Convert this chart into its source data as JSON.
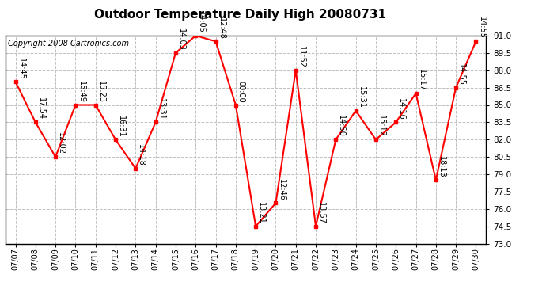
{
  "title": "Outdoor Temperature Daily High 20080731",
  "copyright": "Copyright 2008 Cartronics.com",
  "dates": [
    "07/07",
    "07/08",
    "07/09",
    "07/10",
    "07/11",
    "07/12",
    "07/13",
    "07/14",
    "07/15",
    "07/16",
    "07/17",
    "07/18",
    "07/19",
    "07/20",
    "07/21",
    "07/22",
    "07/23",
    "07/24",
    "07/25",
    "07/26",
    "07/27",
    "07/28",
    "07/29",
    "07/30"
  ],
  "values": [
    87.0,
    83.5,
    80.5,
    85.0,
    85.0,
    82.0,
    79.5,
    83.5,
    89.5,
    91.0,
    90.5,
    85.0,
    74.5,
    76.5,
    88.0,
    74.5,
    82.0,
    84.5,
    82.0,
    83.5,
    86.0,
    78.5,
    86.5,
    90.5
  ],
  "point_labels": [
    "14:45",
    "17:54",
    "12:02",
    "15:49",
    "15:23",
    "16:31",
    "14:18",
    "13:31",
    "14:03",
    "14:05",
    "12:48",
    "00:00",
    "13:21",
    "12:46",
    "11:52",
    "13:57",
    "14:50",
    "15:31",
    "15:12",
    "14:16",
    "15:17",
    "18:13",
    "14:55",
    "14:55"
  ],
  "ylim": [
    73.0,
    91.0
  ],
  "yticks": [
    73.0,
    74.5,
    76.0,
    77.5,
    79.0,
    80.5,
    82.0,
    83.5,
    85.0,
    86.5,
    88.0,
    89.5,
    91.0
  ],
  "line_color": "#FF0000",
  "marker_color": "#FF0000",
  "grid_color": "#C0C0C0",
  "bg_color": "#FFFFFF",
  "title_fontsize": 11,
  "copyright_fontsize": 7,
  "label_fontsize": 7
}
